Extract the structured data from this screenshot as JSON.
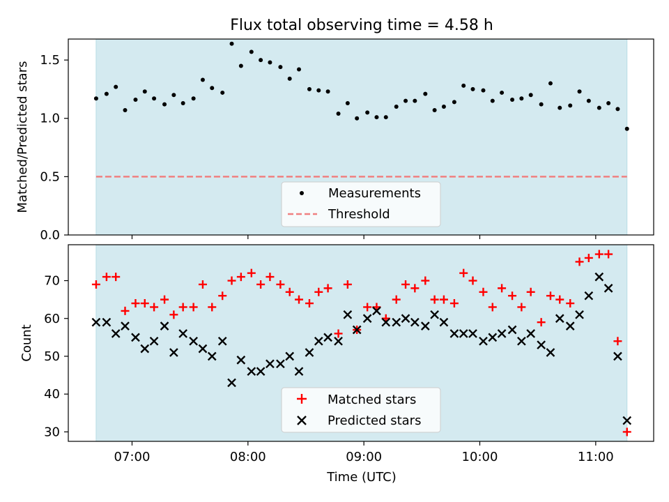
{
  "figure_title": "Flux total observing time = 4.58 h",
  "colors": {
    "shade": "#d4eaf0",
    "matched": "#ff0000",
    "predicted": "#000000",
    "threshold": "#f08080",
    "measurement": "#000000"
  },
  "chart_data": [
    {
      "type": "scatter",
      "title": "Flux total observing time = 4.58 h",
      "ylabel": "Matched/Predicted stars",
      "xlabel": "",
      "x_unit": "hours UTC",
      "xlim": [
        6.45,
        11.5
      ],
      "ylim": [
        0.0,
        1.68
      ],
      "yticks": [
        0.0,
        0.5,
        1.0,
        1.5
      ],
      "ytick_labels": [
        "0.0",
        "0.5",
        "1.0",
        "1.5"
      ],
      "shaded_interval": [
        6.69,
        11.27
      ],
      "legend": [
        "Measurements",
        "Threshold"
      ],
      "legend_position": "lower center",
      "threshold": {
        "name": "Threshold",
        "value": 0.5,
        "x_range": [
          6.69,
          11.27
        ]
      },
      "series": [
        {
          "name": "Measurements",
          "x": [
            6.69,
            6.78,
            6.86,
            6.94,
            7.03,
            7.11,
            7.19,
            7.28,
            7.36,
            7.44,
            7.53,
            7.61,
            7.69,
            7.78,
            7.86,
            7.94,
            8.03,
            8.11,
            8.19,
            8.28,
            8.36,
            8.44,
            8.53,
            8.61,
            8.69,
            8.78,
            8.86,
            8.94,
            9.03,
            9.11,
            9.19,
            9.28,
            9.36,
            9.44,
            9.53,
            9.61,
            9.69,
            9.78,
            9.86,
            9.94,
            10.03,
            10.11,
            10.19,
            10.28,
            10.36,
            10.44,
            10.53,
            10.61,
            10.69,
            10.78,
            10.86,
            10.94,
            11.03,
            11.11,
            11.19,
            11.27
          ],
          "y": [
            1.17,
            1.21,
            1.27,
            1.07,
            1.16,
            1.23,
            1.17,
            1.12,
            1.2,
            1.13,
            1.17,
            1.33,
            1.26,
            1.22,
            1.64,
            1.45,
            1.57,
            1.5,
            1.48,
            1.44,
            1.34,
            1.42,
            1.25,
            1.24,
            1.23,
            1.04,
            1.13,
            1.0,
            1.05,
            1.01,
            1.01,
            1.1,
            1.15,
            1.15,
            1.21,
            1.07,
            1.1,
            1.14,
            1.28,
            1.25,
            1.24,
            1.15,
            1.22,
            1.16,
            1.17,
            1.2,
            1.12,
            1.3,
            1.09,
            1.11,
            1.23,
            1.15,
            1.09,
            1.13,
            1.08,
            0.91
          ]
        }
      ]
    },
    {
      "type": "scatter",
      "title": "",
      "ylabel": "Count",
      "xlabel": "Time (UTC)",
      "x_unit": "hours UTC",
      "xlim": [
        6.45,
        11.5
      ],
      "ylim": [
        27.5,
        79.5
      ],
      "yticks": [
        30,
        40,
        50,
        60,
        70
      ],
      "xticks": [
        7,
        8,
        9,
        10,
        11
      ],
      "xtick_labels": [
        "07:00",
        "08:00",
        "09:00",
        "10:00",
        "11:00"
      ],
      "shaded_interval": [
        6.69,
        11.27
      ],
      "legend": [
        "Matched stars",
        "Predicted stars"
      ],
      "legend_position": "lower center",
      "series": [
        {
          "name": "Matched stars",
          "marker": "+",
          "x": [
            6.69,
            6.78,
            6.86,
            6.94,
            7.03,
            7.11,
            7.19,
            7.28,
            7.36,
            7.44,
            7.53,
            7.61,
            7.69,
            7.78,
            7.86,
            7.94,
            8.03,
            8.11,
            8.19,
            8.28,
            8.36,
            8.44,
            8.53,
            8.61,
            8.69,
            8.78,
            8.86,
            8.94,
            9.03,
            9.11,
            9.19,
            9.28,
            9.36,
            9.44,
            9.53,
            9.61,
            9.69,
            9.78,
            9.86,
            9.94,
            10.03,
            10.11,
            10.19,
            10.28,
            10.36,
            10.44,
            10.53,
            10.61,
            10.69,
            10.78,
            10.86,
            10.94,
            11.03,
            11.11,
            11.19,
            11.27
          ],
          "y": [
            69,
            71,
            71,
            62,
            64,
            64,
            63,
            65,
            61,
            63,
            63,
            69,
            63,
            66,
            70,
            71,
            72,
            69,
            71,
            69,
            67,
            65,
            64,
            67,
            68,
            56,
            69,
            57,
            63,
            63,
            60,
            65,
            69,
            68,
            70,
            65,
            65,
            64,
            72,
            70,
            67,
            63,
            68,
            66,
            63,
            67,
            59,
            66,
            65,
            64,
            75,
            76,
            77,
            77,
            54,
            30
          ]
        },
        {
          "name": "Predicted stars",
          "marker": "x",
          "x": [
            6.69,
            6.78,
            6.86,
            6.94,
            7.03,
            7.11,
            7.19,
            7.28,
            7.36,
            7.44,
            7.53,
            7.61,
            7.69,
            7.78,
            7.86,
            7.94,
            8.03,
            8.11,
            8.19,
            8.28,
            8.36,
            8.44,
            8.53,
            8.61,
            8.69,
            8.78,
            8.86,
            8.94,
            9.03,
            9.11,
            9.19,
            9.28,
            9.36,
            9.44,
            9.53,
            9.61,
            9.69,
            9.78,
            9.86,
            9.94,
            10.03,
            10.11,
            10.19,
            10.28,
            10.36,
            10.44,
            10.53,
            10.61,
            10.69,
            10.78,
            10.86,
            10.94,
            11.03,
            11.11,
            11.19,
            11.27
          ],
          "y": [
            59,
            59,
            56,
            58,
            55,
            52,
            54,
            58,
            51,
            56,
            54,
            52,
            50,
            54,
            43,
            49,
            46,
            46,
            48,
            48,
            50,
            46,
            51,
            54,
            55,
            54,
            61,
            57,
            60,
            62,
            59,
            59,
            60,
            59,
            58,
            61,
            59,
            56,
            56,
            56,
            54,
            55,
            56,
            57,
            54,
            56,
            53,
            51,
            60,
            58,
            61,
            66,
            71,
            68,
            50,
            33
          ]
        }
      ]
    }
  ]
}
